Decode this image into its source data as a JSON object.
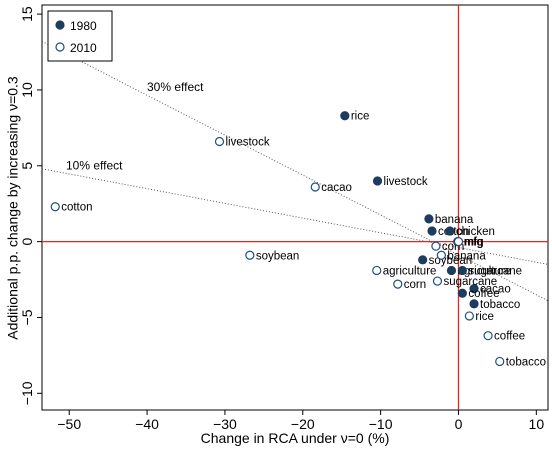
{
  "chart_data": {
    "type": "scatter",
    "x_label": "Change in RCA under ν=0 (%)",
    "y_label": "Additional p.p. change by increasing ν=0.3",
    "xlim": [
      -53.5,
      11.5
    ],
    "ylim": [
      -11.1,
      15.6
    ],
    "xticks": [
      {
        "value": -50,
        "label": "−50"
      },
      {
        "value": -40,
        "label": "−40"
      },
      {
        "value": -30,
        "label": "−30"
      },
      {
        "value": -20,
        "label": "−20"
      },
      {
        "value": -10,
        "label": "−10"
      },
      0,
      10
    ],
    "yticks": [
      {
        "value": -10,
        "label": "−10"
      },
      {
        "value": -5,
        "label": "−5"
      },
      0,
      5,
      10,
      15
    ],
    "zero_lines_color": "#e8251f",
    "legend": "top-left",
    "series": [
      {
        "name": "1980",
        "color": "#1c3d5e",
        "filled": true,
        "labels": [
          "rice",
          "livestock",
          "banana",
          "cotton",
          "chicken",
          "mfg",
          "soybean",
          "agriculture",
          "sugarcane",
          "cacao",
          "coffee",
          "tobacco"
        ],
        "x": [
          -14.6,
          -10.4,
          -3.8,
          -3.4,
          -1.1,
          -0.1,
          -4.6,
          -0.9,
          0.5,
          2.0,
          0.5,
          2.0
        ],
        "y": [
          8.3,
          4.0,
          1.5,
          0.7,
          0.7,
          0.0,
          -1.2,
          -1.9,
          -1.9,
          -3.1,
          -3.4,
          -4.1
        ]
      },
      {
        "name": "2010",
        "color": "#1c4f7e",
        "filled": false,
        "labels": [
          "livestock",
          "cacao",
          "cotton",
          "soybean",
          "agriculture",
          "corn",
          "sugarcane",
          "banana",
          "corn",
          "mfg",
          "rice",
          "coffee",
          "tobacco"
        ],
        "x": [
          -30.7,
          -18.4,
          -51.8,
          -26.8,
          -10.5,
          -7.8,
          -2.7,
          -2.2,
          -2.9,
          0.0,
          1.4,
          3.8,
          5.3
        ],
        "y": [
          6.6,
          3.6,
          2.3,
          -0.9,
          -1.9,
          -2.8,
          -2.6,
          -0.9,
          -0.3,
          0.0,
          -4.9,
          -6.2,
          -7.9
        ]
      }
    ],
    "reference_lines": [
      {
        "label": "30% effect",
        "x": [
          -53.5,
          11.5
        ],
        "y": [
          13.2,
          -3.9
        ]
      },
      {
        "label": "10% effect",
        "x": [
          -53.5,
          11.5
        ],
        "y": [
          4.8,
          -1.5
        ]
      }
    ]
  }
}
